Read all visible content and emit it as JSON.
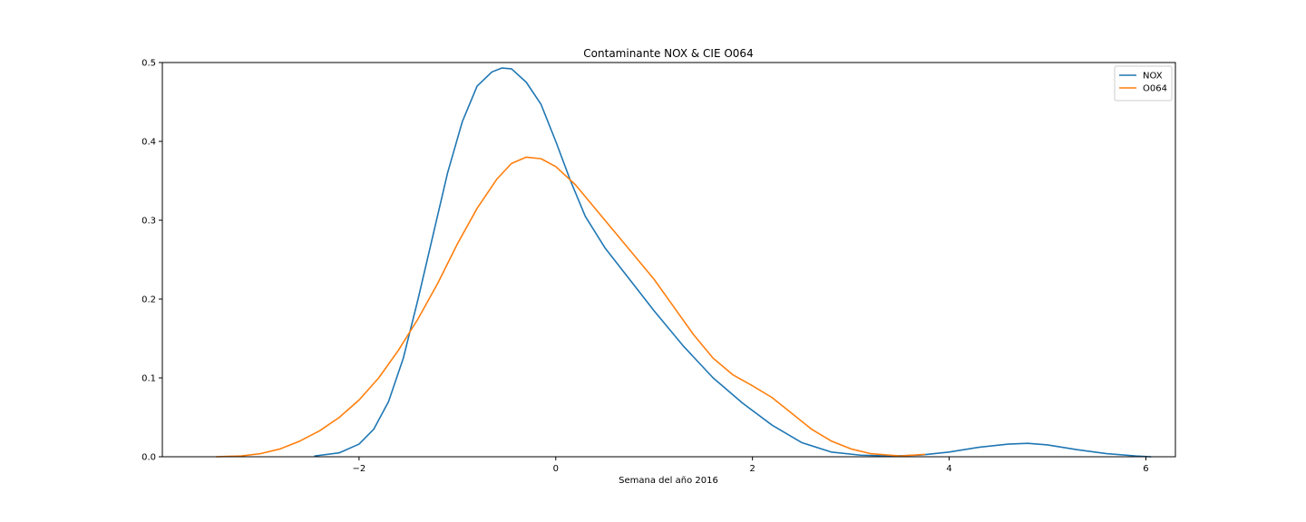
{
  "chart_data": {
    "type": "line",
    "title": "Contaminante NOX & CIE O064",
    "xlabel": "Semana del año 2016",
    "ylabel": "",
    "xlim": [
      -4.0,
      6.3
    ],
    "ylim": [
      0.0,
      0.5
    ],
    "xticks": [
      -2,
      0,
      2,
      4,
      6
    ],
    "xtick_labels": [
      "−2",
      "0",
      "2",
      "4",
      "6"
    ],
    "yticks": [
      0.0,
      0.1,
      0.2,
      0.3,
      0.4,
      0.5
    ],
    "ytick_labels": [
      "0.0",
      "0.1",
      "0.2",
      "0.3",
      "0.4",
      "0.5"
    ],
    "grid": false,
    "legend_position": "top-right",
    "series": [
      {
        "name": "NOX",
        "color": "#1f77b4",
        "points": [
          [
            -2.45,
            0.001
          ],
          [
            -2.2,
            0.005
          ],
          [
            -2.0,
            0.016
          ],
          [
            -1.85,
            0.035
          ],
          [
            -1.7,
            0.07
          ],
          [
            -1.55,
            0.125
          ],
          [
            -1.4,
            0.2
          ],
          [
            -1.25,
            0.28
          ],
          [
            -1.1,
            0.36
          ],
          [
            -0.95,
            0.425
          ],
          [
            -0.8,
            0.47
          ],
          [
            -0.65,
            0.488
          ],
          [
            -0.55,
            0.493
          ],
          [
            -0.45,
            0.492
          ],
          [
            -0.3,
            0.475
          ],
          [
            -0.15,
            0.447
          ],
          [
            0.0,
            0.4
          ],
          [
            0.15,
            0.35
          ],
          [
            0.3,
            0.305
          ],
          [
            0.5,
            0.265
          ],
          [
            0.7,
            0.233
          ],
          [
            1.0,
            0.185
          ],
          [
            1.3,
            0.14
          ],
          [
            1.6,
            0.1
          ],
          [
            1.9,
            0.068
          ],
          [
            2.2,
            0.04
          ],
          [
            2.5,
            0.018
          ],
          [
            2.8,
            0.006
          ],
          [
            3.1,
            0.002
          ],
          [
            3.4,
            0.001
          ],
          [
            3.7,
            0.002
          ],
          [
            4.0,
            0.006
          ],
          [
            4.3,
            0.012
          ],
          [
            4.6,
            0.016
          ],
          [
            4.8,
            0.017
          ],
          [
            5.0,
            0.015
          ],
          [
            5.3,
            0.009
          ],
          [
            5.6,
            0.004
          ],
          [
            5.9,
            0.001
          ],
          [
            6.05,
            0.0
          ]
        ]
      },
      {
        "name": "O064",
        "color": "#ff7f0e",
        "points": [
          [
            -3.45,
            0.0
          ],
          [
            -3.2,
            0.001
          ],
          [
            -3.0,
            0.004
          ],
          [
            -2.8,
            0.01
          ],
          [
            -2.6,
            0.02
          ],
          [
            -2.4,
            0.033
          ],
          [
            -2.2,
            0.05
          ],
          [
            -2.0,
            0.072
          ],
          [
            -1.8,
            0.1
          ],
          [
            -1.6,
            0.135
          ],
          [
            -1.4,
            0.175
          ],
          [
            -1.2,
            0.22
          ],
          [
            -1.0,
            0.27
          ],
          [
            -0.8,
            0.315
          ],
          [
            -0.6,
            0.352
          ],
          [
            -0.45,
            0.372
          ],
          [
            -0.3,
            0.38
          ],
          [
            -0.15,
            0.378
          ],
          [
            0.0,
            0.368
          ],
          [
            0.2,
            0.345
          ],
          [
            0.4,
            0.315
          ],
          [
            0.6,
            0.285
          ],
          [
            0.8,
            0.255
          ],
          [
            1.0,
            0.225
          ],
          [
            1.2,
            0.19
          ],
          [
            1.4,
            0.155
          ],
          [
            1.6,
            0.125
          ],
          [
            1.8,
            0.104
          ],
          [
            2.0,
            0.09
          ],
          [
            2.2,
            0.075
          ],
          [
            2.4,
            0.055
          ],
          [
            2.6,
            0.035
          ],
          [
            2.8,
            0.02
          ],
          [
            3.0,
            0.01
          ],
          [
            3.2,
            0.004
          ],
          [
            3.5,
            0.001
          ],
          [
            3.75,
            0.003
          ]
        ]
      }
    ]
  }
}
